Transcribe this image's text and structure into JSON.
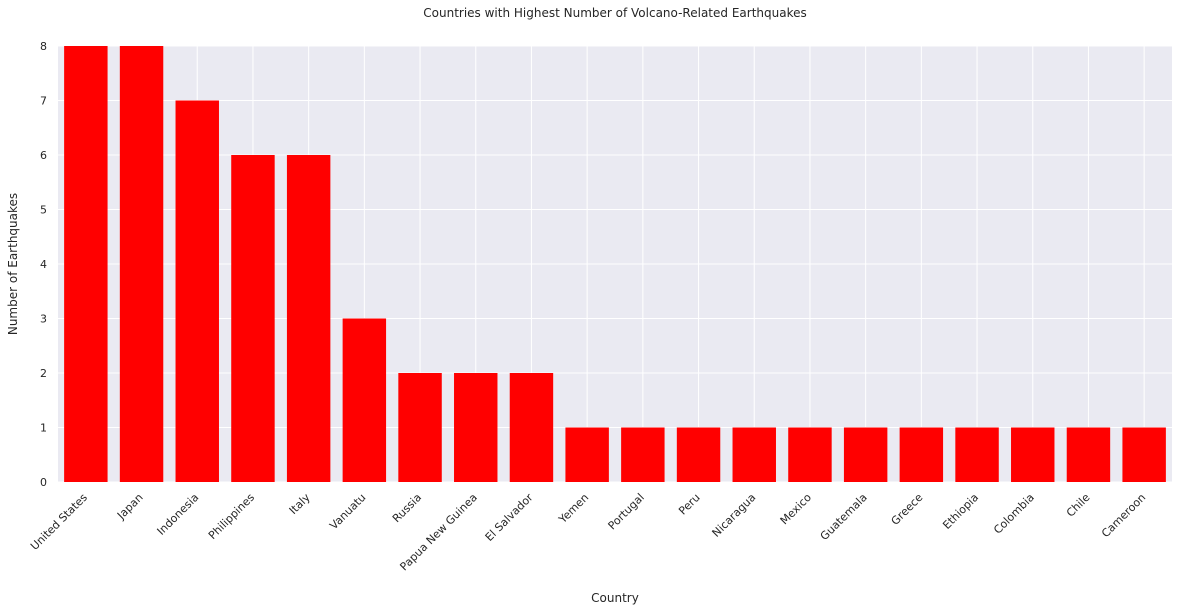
{
  "chart_data": {
    "type": "bar",
    "title": "Countries with Highest Number of Volcano-Related Earthquakes",
    "xlabel": "Country",
    "ylabel": "Number of Earthquakes",
    "categories": [
      "United States",
      "Japan",
      "Indonesia",
      "Philippines",
      "Italy",
      "Vanuatu",
      "Russia",
      "Papua New Guinea",
      "El Salvador",
      "Yemen",
      "Portugal",
      "Peru",
      "Nicaragua",
      "Mexico",
      "Guatemala",
      "Greece",
      "Ethiopia",
      "Colombia",
      "Chile",
      "Cameroon"
    ],
    "values": [
      8,
      8,
      7,
      6,
      6,
      3,
      2,
      2,
      2,
      1,
      1,
      1,
      1,
      1,
      1,
      1,
      1,
      1,
      1,
      1
    ],
    "ylim": [
      0,
      8
    ],
    "yticks": [
      0,
      1,
      2,
      3,
      4,
      5,
      6,
      7,
      8
    ],
    "grid": true,
    "bar_color": "#ff0000",
    "plot_background": "#eaeaf2",
    "grid_color": "#ffffff"
  }
}
